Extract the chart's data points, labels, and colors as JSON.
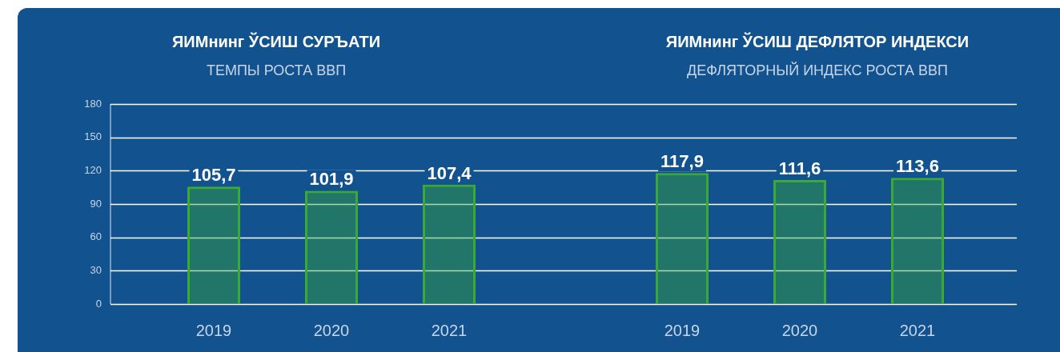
{
  "chart_data": [
    {
      "type": "bar",
      "title": "ЯИМнинг ЎСИШ СУРЪАТИ",
      "subtitle": "ТЕМПЫ РОСТА ВВП",
      "categories": [
        "2019",
        "2020",
        "2021"
      ],
      "values": [
        105.7,
        101.9,
        107.4
      ],
      "value_labels": [
        "105,7",
        "101,9",
        "107,4"
      ],
      "color": "#3aaa35",
      "ylim": [
        0,
        180
      ],
      "yticks": [
        0,
        30,
        60,
        90,
        120,
        150,
        180
      ],
      "grid": "y"
    },
    {
      "type": "bar",
      "title": "ЯИМнинг ЎСИШ ДЕФЛЯТОР ИНДЕКСИ",
      "subtitle": "ДЕФЛЯТОРНЫЙ ИНДЕКС РОСТА ВВП",
      "categories": [
        "2019",
        "2020",
        "2021"
      ],
      "values": [
        117.9,
        111.6,
        113.6
      ],
      "value_labels": [
        "117,9",
        "111,6",
        "113,6"
      ],
      "color": "#3aaa35",
      "ylim": [
        0,
        180
      ],
      "yticks": [
        0,
        30,
        60,
        90,
        120,
        150,
        180
      ],
      "grid": "y",
      "tick_labels": "x"
    }
  ]
}
